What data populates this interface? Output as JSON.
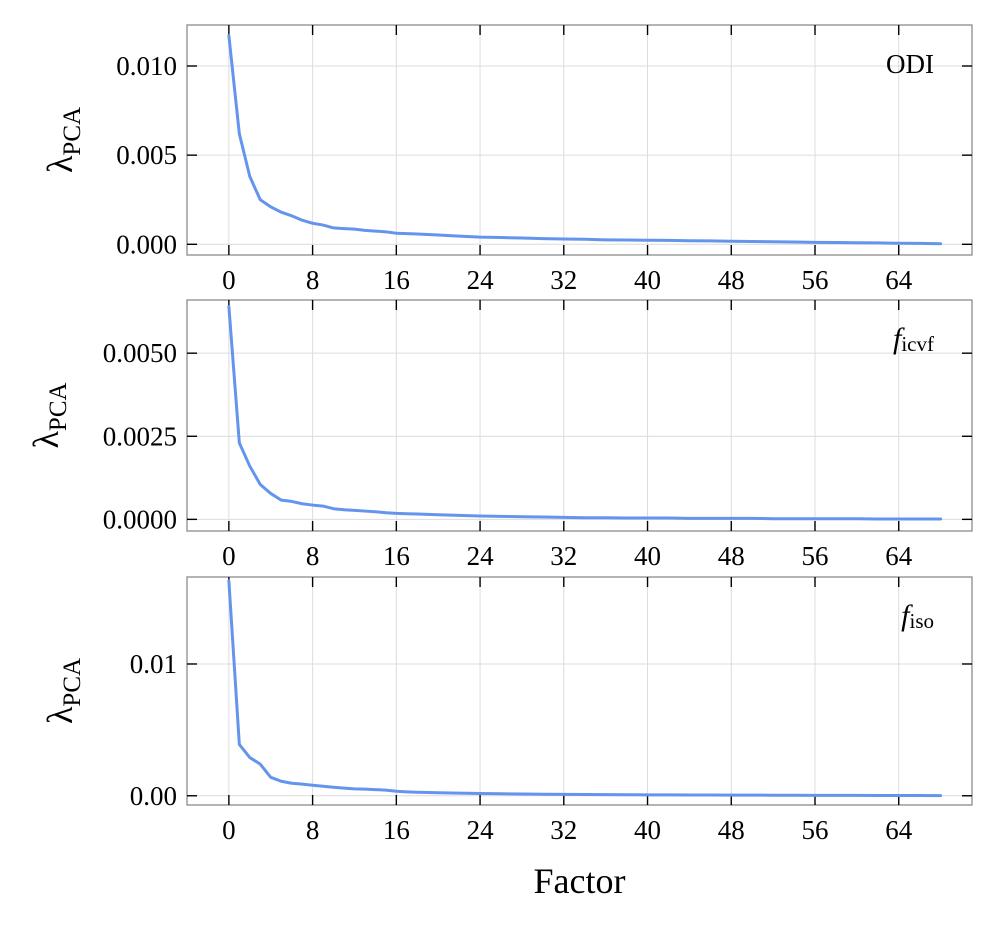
{
  "chart_data": [
    {
      "type": "line",
      "annotation": "ODI",
      "annotation_italic": false,
      "ylabel_main": "λ",
      "ylabel_sub": "PCA",
      "xlabel": "",
      "xlim": [
        -4,
        71
      ],
      "ylim": [
        -0.0006,
        0.0123
      ],
      "xticks": [
        0,
        8,
        16,
        24,
        32,
        40,
        48,
        56,
        64
      ],
      "yticks": [
        0.0,
        0.005,
        0.01
      ],
      "ytick_labels": [
        "0.000",
        "0.005",
        "0.010"
      ],
      "color": "#6495ED",
      "series": [
        {
          "x": [
            0,
            1,
            2,
            3,
            4,
            5,
            6,
            7,
            8,
            9,
            10,
            11,
            12,
            13,
            14,
            15,
            16,
            17,
            18,
            19,
            20,
            22,
            24,
            26,
            28,
            30,
            32,
            34,
            36,
            38,
            40,
            42,
            44,
            46,
            48,
            50,
            52,
            54,
            56,
            58,
            60,
            62,
            64,
            66,
            68
          ],
          "y": [
            0.0117,
            0.0062,
            0.0038,
            0.0025,
            0.0021,
            0.0018,
            0.0016,
            0.00135,
            0.00118,
            0.00108,
            0.00092,
            0.00088,
            0.00085,
            0.00078,
            0.00074,
            0.0007,
            0.00062,
            0.0006,
            0.00058,
            0.00055,
            0.00052,
            0.00046,
            0.0004,
            0.00038,
            0.00035,
            0.00032,
            0.0003,
            0.00028,
            0.00025,
            0.00024,
            0.00023,
            0.00022,
            0.0002,
            0.00019,
            0.00017,
            0.00016,
            0.00014,
            0.00013,
            0.00011,
            0.0001,
            9e-05,
            8e-05,
            6e-05,
            5e-05,
            3e-05
          ]
        }
      ]
    },
    {
      "type": "line",
      "annotation": "f",
      "annotation_sub": "icvf",
      "annotation_italic": true,
      "ylabel_main": "λ",
      "ylabel_sub": "PCA",
      "xlabel": "",
      "xlim": [
        -4,
        71
      ],
      "ylim": [
        -0.00035,
        0.0066
      ],
      "xticks": [
        0,
        8,
        16,
        24,
        32,
        40,
        48,
        56,
        64
      ],
      "yticks": [
        0.0,
        0.0025,
        0.005
      ],
      "ytick_labels": [
        "0.0000",
        "0.0025",
        "0.0050"
      ],
      "color": "#6495ED",
      "series": [
        {
          "x": [
            0,
            1,
            2,
            3,
            4,
            5,
            6,
            7,
            8,
            9,
            10,
            11,
            12,
            13,
            14,
            15,
            16,
            17,
            18,
            19,
            20,
            22,
            24,
            26,
            28,
            30,
            32,
            34,
            36,
            38,
            40,
            42,
            44,
            46,
            48,
            50,
            52,
            54,
            56,
            58,
            60,
            62,
            64,
            66,
            68
          ],
          "y": [
            0.0064,
            0.0023,
            0.0016,
            0.00105,
            0.00078,
            0.00058,
            0.00054,
            0.00047,
            0.00043,
            0.0004,
            0.00032,
            0.00029,
            0.00027,
            0.00025,
            0.00023,
            0.0002,
            0.00018,
            0.00017,
            0.00016,
            0.00015,
            0.00014,
            0.00012,
            0.0001,
            9e-05,
            8e-05,
            7e-05,
            6e-05,
            5e-05,
            5e-05,
            4e-05,
            4e-05,
            4e-05,
            3e-05,
            3e-05,
            3e-05,
            3e-05,
            2e-05,
            2e-05,
            2e-05,
            2e-05,
            2e-05,
            1e-05,
            1e-05,
            1e-05,
            1e-05
          ]
        }
      ]
    },
    {
      "type": "line",
      "annotation": "f",
      "annotation_sub": "iso",
      "annotation_italic": true,
      "ylabel_main": "λ",
      "ylabel_sub": "PCA",
      "xlabel": "Factor",
      "xlim": [
        -4,
        71
      ],
      "ylim": [
        -0.0007,
        0.0166
      ],
      "xticks": [
        0,
        8,
        16,
        24,
        32,
        40,
        48,
        56,
        64
      ],
      "yticks": [
        0.0,
        0.01
      ],
      "ytick_labels": [
        "0.00",
        "0.01"
      ],
      "color": "#6495ED",
      "series": [
        {
          "x": [
            0,
            1,
            2,
            3,
            4,
            5,
            6,
            7,
            8,
            9,
            10,
            11,
            12,
            13,
            14,
            15,
            16,
            17,
            18,
            19,
            20,
            22,
            24,
            26,
            28,
            30,
            32,
            34,
            36,
            38,
            40,
            42,
            44,
            46,
            48,
            50,
            52,
            54,
            56,
            58,
            60,
            62,
            64,
            66,
            68
          ],
          "y": [
            0.0163,
            0.0039,
            0.0029,
            0.0024,
            0.0014,
            0.0011,
            0.00095,
            0.00088,
            0.0008,
            0.00072,
            0.00065,
            0.00058,
            0.00052,
            0.0005,
            0.00047,
            0.00043,
            0.00034,
            0.0003,
            0.00027,
            0.00025,
            0.00023,
            0.0002,
            0.00017,
            0.00015,
            0.00013,
            0.00012,
            0.00011,
            0.0001,
            9e-05,
            8e-05,
            7e-05,
            7e-05,
            6e-05,
            6e-05,
            5e-05,
            5e-05,
            4e-05,
            4e-05,
            3e-05,
            3e-05,
            3e-05,
            2e-05,
            2e-05,
            2e-05,
            1e-05
          ]
        }
      ]
    }
  ]
}
